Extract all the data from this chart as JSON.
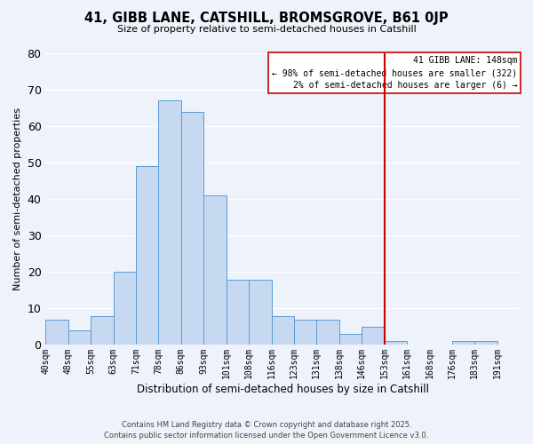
{
  "title": "41, GIBB LANE, CATSHILL, BROMSGROVE, B61 0JP",
  "subtitle": "Size of property relative to semi-detached houses in Catshill",
  "xlabel": "Distribution of semi-detached houses by size in Catshill",
  "ylabel": "Number of semi-detached properties",
  "bin_labels": [
    "40sqm",
    "48sqm",
    "55sqm",
    "63sqm",
    "71sqm",
    "78sqm",
    "86sqm",
    "93sqm",
    "101sqm",
    "108sqm",
    "116sqm",
    "123sqm",
    "131sqm",
    "138sqm",
    "146sqm",
    "153sqm",
    "161sqm",
    "168sqm",
    "176sqm",
    "183sqm",
    "191sqm"
  ],
  "bar_heights": [
    7,
    4,
    8,
    20,
    49,
    67,
    64,
    41,
    18,
    18,
    8,
    7,
    7,
    3,
    5,
    1,
    0,
    0,
    1,
    1,
    0
  ],
  "bar_color": "#c6d9f1",
  "bar_edge_color": "#5b9bd5",
  "vline_color": "#cc0000",
  "legend_title": "41 GIBB LANE: 148sqm",
  "legend_line1": "← 98% of semi-detached houses are smaller (322)",
  "legend_line2": "2% of semi-detached houses are larger (6) →",
  "vline_bin_index": 14,
  "n_bins": 21,
  "ylim": [
    0,
    80
  ],
  "yticks": [
    0,
    10,
    20,
    30,
    40,
    50,
    60,
    70,
    80
  ],
  "background_color": "#eef2fa",
  "grid_color": "#ffffff",
  "footer_line1": "Contains HM Land Registry data © Crown copyright and database right 2025.",
  "footer_line2": "Contains public sector information licensed under the Open Government Licence v3.0."
}
